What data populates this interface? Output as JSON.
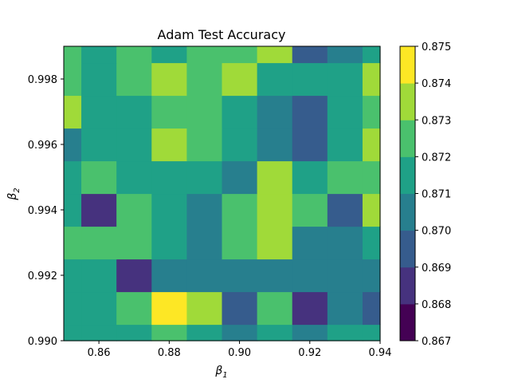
{
  "chart_data": {
    "type": "heatmap",
    "title": "Adam Test Accuracy",
    "xlabel": "β",
    "xlabel_sub": "1",
    "ylabel": "β",
    "ylabel_sub": "2",
    "xlim": [
      0.85,
      0.94
    ],
    "ylim": [
      0.99,
      0.999
    ],
    "x": [
      0.85,
      0.86,
      0.87,
      0.88,
      0.89,
      0.9,
      0.91,
      0.92,
      0.93,
      0.94
    ],
    "y": [
      0.99,
      0.991,
      0.992,
      0.993,
      0.994,
      0.995,
      0.996,
      0.997,
      0.998,
      0.999
    ],
    "values": [
      [
        0.871,
        0.871,
        0.8715,
        0.872,
        0.8715,
        0.8705,
        0.871,
        0.8705,
        0.871,
        0.8715
      ],
      [
        0.8715,
        0.8718,
        0.8725,
        0.8745,
        0.873,
        0.8695,
        0.8722,
        0.8688,
        0.8705,
        0.869
      ],
      [
        0.871,
        0.8715,
        0.8688,
        0.8705,
        0.87,
        0.87,
        0.8705,
        0.87,
        0.8705,
        0.8705
      ],
      [
        0.8725,
        0.8728,
        0.8722,
        0.871,
        0.87,
        0.872,
        0.8732,
        0.8705,
        0.87,
        0.871
      ],
      [
        0.8715,
        0.8688,
        0.8728,
        0.8712,
        0.8705,
        0.8725,
        0.8735,
        0.8725,
        0.8698,
        0.8738
      ],
      [
        0.8715,
        0.8722,
        0.8715,
        0.871,
        0.8715,
        0.8705,
        0.8732,
        0.871,
        0.872,
        0.8725
      ],
      [
        0.8705,
        0.871,
        0.8715,
        0.8732,
        0.8722,
        0.8715,
        0.8705,
        0.8695,
        0.8715,
        0.8732
      ],
      [
        0.8732,
        0.8712,
        0.871,
        0.872,
        0.8722,
        0.871,
        0.87,
        0.8695,
        0.8712,
        0.8725
      ],
      [
        0.8722,
        0.8718,
        0.8725,
        0.8732,
        0.8722,
        0.8732,
        0.8715,
        0.871,
        0.8715,
        0.873
      ],
      [
        0.8725,
        0.871,
        0.872,
        0.8715,
        0.8728,
        0.8722,
        0.873,
        0.869,
        0.8705,
        0.8715
      ]
    ],
    "levels": [
      0.867,
      0.868,
      0.869,
      0.87,
      0.871,
      0.872,
      0.873,
      0.874,
      0.875
    ],
    "level_colors": [
      "#440154",
      "#46327e",
      "#365c8d",
      "#277f8e",
      "#1fa187",
      "#4ac16d",
      "#a0da39",
      "#fde725"
    ],
    "x_tick_labels": [
      "0.86",
      "0.88",
      "0.90",
      "0.92",
      "0.94"
    ],
    "y_tick_labels": [
      "0.990",
      "0.992",
      "0.994",
      "0.996",
      "0.998"
    ],
    "colorbar_tick_labels": [
      "0.867",
      "0.868",
      "0.869",
      "0.870",
      "0.871",
      "0.872",
      "0.873",
      "0.874",
      "0.875"
    ],
    "colormap": "viridis",
    "grid": false,
    "legend": "colorbar-right"
  }
}
